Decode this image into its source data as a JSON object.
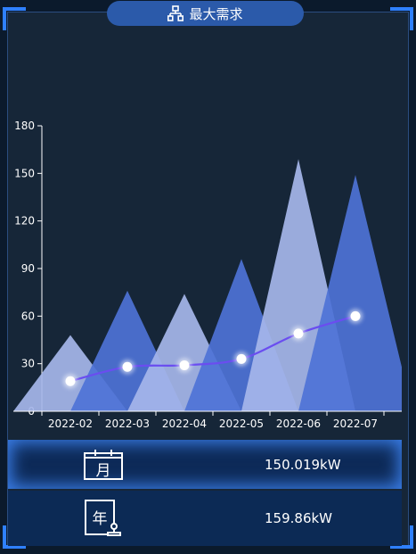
{
  "header": {
    "title": "最大需求"
  },
  "chart_data": {
    "type": "bar",
    "categories": [
      "2022-02",
      "2022-03",
      "2022-04",
      "2022-05",
      "2022-06",
      "2022-07"
    ],
    "series": [
      {
        "type": "pictorialBar-triangle",
        "values": [
          48,
          76,
          74,
          96,
          159,
          149
        ]
      },
      {
        "type": "line",
        "values": [
          19,
          28,
          29,
          33,
          49,
          60
        ]
      }
    ],
    "y_ticks": [
      0,
      30,
      60,
      90,
      120,
      150,
      180
    ],
    "ylim": [
      0,
      180
    ],
    "colors": [
      "#a6b6ea",
      "#4e72d6",
      "#a6b6ea",
      "#4e72d6",
      "#a6b6ea",
      "#4e72d6"
    ],
    "line_color": "#6a4df0"
  },
  "stats": {
    "month": {
      "icon_char": "月",
      "value": "150.019kW"
    },
    "year": {
      "icon_char": "年",
      "value": "159.86kW"
    }
  }
}
